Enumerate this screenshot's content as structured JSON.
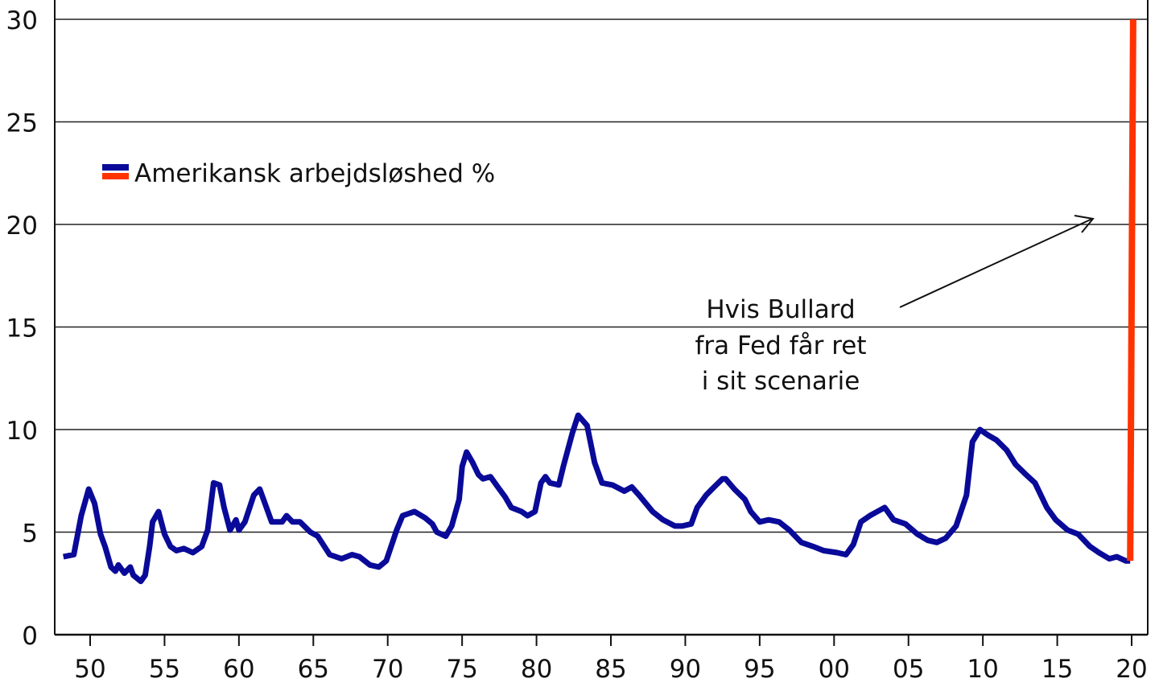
{
  "chart_data": {
    "type": "line",
    "title": "",
    "xlabel": "",
    "ylabel": "",
    "xlim": [
      1948,
      2021
    ],
    "ylim": [
      0,
      30
    ],
    "grid": "horizontal",
    "legend_placement": "top-left",
    "yticks": [
      "0",
      "5",
      "10",
      "15",
      "20",
      "25",
      "30"
    ],
    "ytick_values": [
      0,
      5,
      10,
      15,
      20,
      25,
      30
    ],
    "xticks": [
      "50",
      "55",
      "60",
      "65",
      "70",
      "75",
      "80",
      "85",
      "90",
      "95",
      "00",
      "05",
      "10",
      "15",
      "20"
    ],
    "xtick_values": [
      1950,
      1955,
      1960,
      1965,
      1970,
      1975,
      1980,
      1985,
      1990,
      1995,
      2000,
      2005,
      2010,
      2015,
      2020
    ],
    "legend": {
      "label": "Amerikansk arbejdsløshed %",
      "colors": [
        "#0a0a99",
        "#ff3300"
      ]
    },
    "annotation": {
      "lines": [
        "Hvis Bullard",
        "fra Fed får ret",
        "i sit scenarie"
      ]
    },
    "series": [
      {
        "color": "#0a0a99",
        "x": [
          1948.2,
          1948.9,
          1949.4,
          1949.9,
          1950.3,
          1950.7,
          1951.0,
          1951.4,
          1951.7,
          1951.9,
          1952.3,
          1952.7,
          1952.9,
          1953.4,
          1953.7,
          1954.0,
          1954.2,
          1954.6,
          1955.0,
          1955.4,
          1955.8,
          1956.3,
          1956.9,
          1957.5,
          1957.9,
          1958.3,
          1958.7,
          1959.0,
          1959.4,
          1959.8,
          1960.0,
          1960.4,
          1961.0,
          1961.4,
          1961.7,
          1962.2,
          1962.9,
          1963.2,
          1963.6,
          1964.1,
          1964.8,
          1965.3,
          1966.1,
          1966.9,
          1967.6,
          1968.1,
          1968.8,
          1969.4,
          1969.9,
          1970.6,
          1971.0,
          1971.4,
          1971.8,
          1972.5,
          1973.0,
          1973.3,
          1973.9,
          1974.3,
          1974.8,
          1975.0,
          1975.3,
          1975.7,
          1976.1,
          1976.4,
          1976.9,
          1977.5,
          1977.9,
          1978.3,
          1979.0,
          1979.4,
          1979.9,
          1980.3,
          1980.6,
          1980.9,
          1981.5,
          1981.8,
          1982.4,
          1982.8,
          1983.4,
          1983.9,
          1984.4,
          1985.1,
          1985.9,
          1986.4,
          1986.9,
          1987.8,
          1988.5,
          1989.3,
          1989.8,
          1990.4,
          1990.8,
          1991.4,
          1991.8,
          1992.5,
          1992.7,
          1993.3,
          1994.0,
          1994.4,
          1995.0,
          1995.6,
          1996.3,
          1997.0,
          1997.8,
          1998.6,
          1999.3,
          2000.2,
          2000.8,
          2001.3,
          2001.8,
          2002.4,
          2002.9,
          2003.4,
          2004.0,
          2004.8,
          2005.6,
          2006.3,
          2006.9,
          2007.5,
          2008.2,
          2008.9,
          2009.3,
          2009.8,
          2010.4,
          2010.9,
          2011.6,
          2012.2,
          2012.9,
          2013.5,
          2014.3,
          2014.9,
          2015.7,
          2016.4,
          2017.2,
          2017.8,
          2018.5,
          2019.0,
          2019.6,
          2019.9
        ],
        "y": [
          3.8,
          3.9,
          5.8,
          7.1,
          6.4,
          4.9,
          4.3,
          3.3,
          3.1,
          3.4,
          3.0,
          3.3,
          2.9,
          2.6,
          2.9,
          4.3,
          5.5,
          6.0,
          4.9,
          4.3,
          4.1,
          4.2,
          4.0,
          4.3,
          5.1,
          7.4,
          7.3,
          6.2,
          5.1,
          5.6,
          5.1,
          5.5,
          6.8,
          7.1,
          6.5,
          5.5,
          5.5,
          5.8,
          5.5,
          5.5,
          5.0,
          4.8,
          3.9,
          3.7,
          3.9,
          3.8,
          3.4,
          3.3,
          3.6,
          5.1,
          5.8,
          5.9,
          6.0,
          5.7,
          5.4,
          5.0,
          4.8,
          5.3,
          6.6,
          8.2,
          8.9,
          8.4,
          7.8,
          7.6,
          7.7,
          7.1,
          6.7,
          6.2,
          6.0,
          5.8,
          6.0,
          7.4,
          7.7,
          7.4,
          7.3,
          8.2,
          9.8,
          10.7,
          10.2,
          8.4,
          7.4,
          7.3,
          7.0,
          7.2,
          6.8,
          6.0,
          5.6,
          5.3,
          5.3,
          5.4,
          6.2,
          6.8,
          7.1,
          7.6,
          7.6,
          7.1,
          6.6,
          6.0,
          5.5,
          5.6,
          5.5,
          5.1,
          4.5,
          4.3,
          4.1,
          4.0,
          3.9,
          4.4,
          5.5,
          5.8,
          6.0,
          6.2,
          5.6,
          5.4,
          4.9,
          4.6,
          4.5,
          4.7,
          5.3,
          6.8,
          9.4,
          10.0,
          9.7,
          9.5,
          9.0,
          8.3,
          7.8,
          7.4,
          6.2,
          5.6,
          5.1,
          4.9,
          4.3,
          4.0,
          3.7,
          3.8,
          3.6,
          3.6
        ]
      },
      {
        "color": "#ff3300",
        "x": [
          2019.9,
          2020.1
        ],
        "y": [
          3.6,
          30
        ]
      }
    ]
  }
}
